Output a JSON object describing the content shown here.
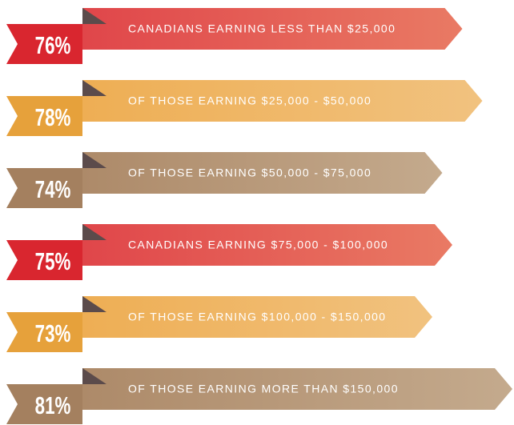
{
  "chart_data": {
    "type": "ribbon-bar",
    "categories": [
      "CANADIANS EARNING LESS THAN $25,000",
      "OF THOSE EARNING $25,000 - $50,000",
      "OF THOSE EARNING $50,000 - $75,000",
      "CANADIANS EARNING $75,000 - $100,000",
      "OF THOSE EARNING $100,000 - $150,000",
      "OF THOSE EARNING MORE THAN $150,000"
    ],
    "values": [
      76,
      78,
      74,
      75,
      73,
      81
    ],
    "value_labels": [
      "76%",
      "78%",
      "74%",
      "75%",
      "73%",
      "81%"
    ],
    "colors": [
      "#d9262f",
      "#e6a13b",
      "#a4805f",
      "#d9262f",
      "#e6a13b",
      "#a4805f"
    ],
    "ribbon_colors": [
      [
        "#e0464a",
        "#e97a64"
      ],
      [
        "#eeae54",
        "#f1c27f"
      ],
      [
        "#ad8a69",
        "#c4aa8d"
      ],
      [
        "#e0464a",
        "#e97a64"
      ],
      [
        "#eeae54",
        "#f1c27f"
      ],
      [
        "#ad8a69",
        "#c4aa8d"
      ]
    ]
  }
}
